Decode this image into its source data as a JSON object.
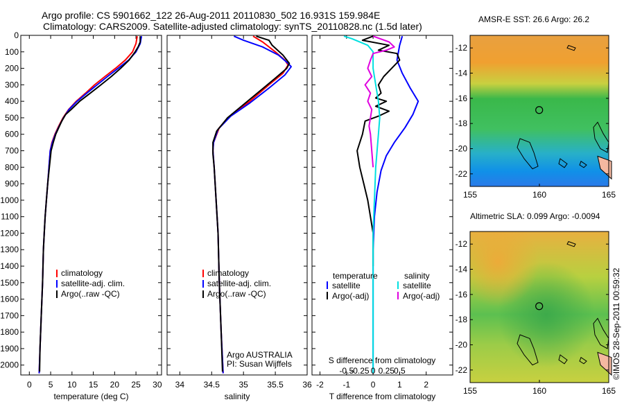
{
  "header": {
    "line1": "Argo profile: CS 5901662_122 26-Aug-2011 20110830_502 16.931S 159.984E",
    "line2": "Climatology: CARS2009. Satellite-adjusted climatology: synTS_20110828.nc (1.5d later)"
  },
  "colors": {
    "climatology": "#ff0000",
    "satellite": "#0000ff",
    "argo": "#000000",
    "sal_satellite": "#00e0e0",
    "sal_argo": "#e000e0"
  },
  "depth_ticks": [
    0,
    100,
    200,
    300,
    400,
    500,
    600,
    700,
    800,
    900,
    1000,
    1100,
    1200,
    1300,
    1400,
    1500,
    1600,
    1700,
    1800,
    1900,
    2000
  ],
  "chart_data": [
    {
      "type": "line",
      "xlabel": "temperature (deg C)",
      "xlim": [
        -2,
        31
      ],
      "ylim": [
        2060,
        0
      ],
      "xticks": [
        0,
        5,
        10,
        15,
        20,
        25,
        30
      ],
      "legend": [
        "climatology",
        "satellite-adj. clim.",
        "Argo(..raw -QC)"
      ],
      "series": [
        {
          "name": "climatology",
          "color": "#ff0000",
          "points": [
            [
              25.3,
              5
            ],
            [
              25.0,
              50
            ],
            [
              24.2,
              100
            ],
            [
              22.5,
              150
            ],
            [
              20.2,
              200
            ],
            [
              17.7,
              250
            ],
            [
              15.3,
              300
            ],
            [
              13.2,
              350
            ],
            [
              11.0,
              400
            ],
            [
              9.2,
              450
            ],
            [
              7.9,
              500
            ],
            [
              6.9,
              550
            ],
            [
              6.0,
              600
            ],
            [
              5.3,
              650
            ],
            [
              4.9,
              700
            ],
            [
              4.6,
              800
            ],
            [
              4.3,
              900
            ],
            [
              4.0,
              1000
            ],
            [
              3.7,
              1100
            ],
            [
              3.5,
              1200
            ],
            [
              3.3,
              1300
            ],
            [
              3.1,
              1500
            ],
            [
              2.8,
              1700
            ],
            [
              2.5,
              1900
            ],
            [
              2.3,
              2050
            ]
          ]
        },
        {
          "name": "satellite-adj. clim.",
          "color": "#0000ff",
          "points": [
            [
              26.3,
              5
            ],
            [
              26.0,
              50
            ],
            [
              25.0,
              100
            ],
            [
              23.3,
              150
            ],
            [
              20.8,
              200
            ],
            [
              18.3,
              250
            ],
            [
              15.9,
              300
            ],
            [
              13.5,
              350
            ],
            [
              11.2,
              400
            ],
            [
              9.3,
              450
            ],
            [
              8.0,
              500
            ],
            [
              7.0,
              550
            ],
            [
              6.1,
              600
            ],
            [
              5.4,
              650
            ],
            [
              4.9,
              700
            ],
            [
              4.6,
              800
            ],
            [
              4.3,
              900
            ],
            [
              4.0,
              1000
            ],
            [
              3.7,
              1100
            ],
            [
              3.5,
              1200
            ],
            [
              3.3,
              1300
            ],
            [
              3.1,
              1500
            ],
            [
              2.8,
              1700
            ],
            [
              2.5,
              1900
            ],
            [
              2.3,
              2050
            ]
          ]
        },
        {
          "name": "Argo(..raw -QC)",
          "color": "#000000",
          "points": [
            [
              26.0,
              5
            ],
            [
              26.0,
              40
            ],
            [
              25.5,
              70
            ],
            [
              24.8,
              100
            ],
            [
              23.4,
              150
            ],
            [
              21.4,
              200
            ],
            [
              19.2,
              250
            ],
            [
              16.8,
              300
            ],
            [
              14.3,
              350
            ],
            [
              11.8,
              400
            ],
            [
              9.8,
              450
            ],
            [
              8.5,
              480
            ],
            [
              7.6,
              520
            ],
            [
              6.9,
              560
            ],
            [
              6.2,
              600
            ],
            [
              5.6,
              650
            ],
            [
              5.1,
              700
            ],
            [
              4.7,
              800
            ],
            [
              4.3,
              900
            ],
            [
              4.0,
              1000
            ],
            [
              3.7,
              1100
            ],
            [
              3.5,
              1200
            ],
            [
              3.3,
              1300
            ],
            [
              3.1,
              1500
            ],
            [
              2.8,
              1700
            ],
            [
              2.5,
              1900
            ],
            [
              2.4,
              2040
            ]
          ]
        }
      ]
    },
    {
      "type": "line",
      "xlabel": "salinity",
      "xlim": [
        33.8,
        36.0
      ],
      "ylim": [
        2060,
        0
      ],
      "xticks": [
        34,
        34.5,
        35,
        35.5,
        36
      ],
      "legend": [
        "climatology",
        "satellite-adj. clim.",
        "Argo(..raw -QC)"
      ],
      "annotation": [
        "Argo AUSTRALIA",
        "PI: Susan Wijffels"
      ],
      "series": [
        {
          "name": "climatology",
          "color": "#ff0000",
          "points": [
            [
              35.15,
              5
            ],
            [
              35.3,
              40
            ],
            [
              35.5,
              100
            ],
            [
              35.65,
              150
            ],
            [
              35.7,
              180
            ],
            [
              35.62,
              230
            ],
            [
              35.4,
              300
            ],
            [
              35.1,
              400
            ],
            [
              34.82,
              480
            ],
            [
              34.62,
              560
            ],
            [
              34.53,
              650
            ],
            [
              34.52,
              700
            ],
            [
              34.54,
              800
            ],
            [
              34.57,
              1000
            ],
            [
              34.6,
              1200
            ],
            [
              34.62,
              1500
            ],
            [
              34.65,
              1800
            ],
            [
              34.68,
              2050
            ]
          ]
        },
        {
          "name": "satellite-adj. clim.",
          "color": "#0000ff",
          "points": [
            [
              34.85,
              5
            ],
            [
              35.0,
              30
            ],
            [
              35.3,
              70
            ],
            [
              35.55,
              120
            ],
            [
              35.7,
              170
            ],
            [
              35.75,
              190
            ],
            [
              35.65,
              240
            ],
            [
              35.4,
              320
            ],
            [
              35.1,
              410
            ],
            [
              34.8,
              490
            ],
            [
              34.6,
              570
            ],
            [
              34.53,
              650
            ],
            [
              34.52,
              700
            ],
            [
              34.54,
              800
            ],
            [
              34.57,
              1000
            ],
            [
              34.6,
              1200
            ],
            [
              34.62,
              1500
            ],
            [
              34.65,
              1800
            ],
            [
              34.68,
              2050
            ]
          ]
        },
        {
          "name": "Argo(..raw -QC)",
          "color": "#000000",
          "points": [
            [
              35.2,
              5
            ],
            [
              35.4,
              30
            ],
            [
              35.45,
              60
            ],
            [
              35.62,
              120
            ],
            [
              35.72,
              170
            ],
            [
              35.68,
              200
            ],
            [
              35.5,
              260
            ],
            [
              35.25,
              340
            ],
            [
              35.0,
              420
            ],
            [
              34.75,
              500
            ],
            [
              34.58,
              580
            ],
            [
              34.52,
              650
            ],
            [
              34.52,
              720
            ],
            [
              34.54,
              800
            ],
            [
              34.57,
              1000
            ],
            [
              34.6,
              1200
            ],
            [
              34.62,
              1500
            ],
            [
              34.65,
              1800
            ],
            [
              34.67,
              2040
            ]
          ]
        }
      ]
    },
    {
      "type": "line",
      "xlabel": "T difference from climatology",
      "xlabel2": "S difference from climatology",
      "xlim": [
        -2.3,
        3.0
      ],
      "ylim": [
        2060,
        0
      ],
      "xticks": [
        -2,
        -1,
        0,
        1,
        2
      ],
      "xticks2": [
        "-0.5",
        "-0.25",
        "0",
        "0.25",
        "0.5"
      ],
      "legend_temperature": [
        "temperature",
        "satellite",
        "Argo(-adj)"
      ],
      "legend_salinity": [
        "salinity",
        "satellite",
        "Argo(-adj)"
      ],
      "series": [
        {
          "name": "satellite",
          "group": "temperature",
          "color": "#0000ff",
          "points": [
            [
              1.1,
              5
            ],
            [
              1.0,
              60
            ],
            [
              0.9,
              150
            ],
            [
              1.1,
              230
            ],
            [
              1.4,
              320
            ],
            [
              1.7,
              400
            ],
            [
              1.5,
              480
            ],
            [
              1.2,
              560
            ],
            [
              0.8,
              650
            ],
            [
              0.5,
              730
            ],
            [
              0.3,
              820
            ],
            [
              0.15,
              950
            ],
            [
              0.05,
              1100
            ],
            [
              0.0,
              1300
            ],
            [
              0.0,
              2050
            ]
          ]
        },
        {
          "name": "Argo(-adj)",
          "group": "temperature",
          "color": "#000000",
          "points": [
            [
              0.0,
              5
            ],
            [
              -0.4,
              30
            ],
            [
              0.6,
              60
            ],
            [
              0.2,
              90
            ],
            [
              0.9,
              110
            ],
            [
              1.0,
              150
            ],
            [
              0.7,
              200
            ],
            [
              0.4,
              250
            ],
            [
              0.2,
              300
            ],
            [
              0.3,
              350
            ],
            [
              0.1,
              380
            ],
            [
              0.5,
              400
            ],
            [
              0.1,
              430
            ],
            [
              0.6,
              460
            ],
            [
              0.2,
              490
            ],
            [
              -0.3,
              520
            ],
            [
              -0.4,
              600
            ],
            [
              -0.6,
              700
            ],
            [
              -0.5,
              800
            ],
            [
              -0.35,
              900
            ],
            [
              -0.2,
              1000
            ],
            [
              -0.1,
              1100
            ],
            [
              0.0,
              1200
            ],
            [
              0.0,
              1400
            ]
          ]
        },
        {
          "name": "satellite",
          "group": "salinity",
          "color": "#00e0e0",
          "points": [
            [
              -1.1,
              5
            ],
            [
              -0.8,
              20
            ],
            [
              -0.2,
              60
            ],
            [
              0.0,
              100
            ],
            [
              0.0,
              200
            ],
            [
              0.1,
              300
            ],
            [
              0.2,
              400
            ],
            [
              0.25,
              500
            ],
            [
              0.2,
              600
            ],
            [
              0.1,
              800
            ],
            [
              0.05,
              1000
            ],
            [
              0.0,
              1200
            ],
            [
              0.0,
              2050
            ]
          ]
        },
        {
          "name": "Argo(-adj)",
          "group": "salinity",
          "color": "#e000e0",
          "points": [
            [
              0.0,
              5
            ],
            [
              0.6,
              40
            ],
            [
              0.8,
              70
            ],
            [
              0.5,
              90
            ],
            [
              0.0,
              110
            ],
            [
              -0.1,
              150
            ],
            [
              -0.2,
              200
            ],
            [
              -0.05,
              250
            ],
            [
              -0.3,
              300
            ],
            [
              -0.1,
              350
            ],
            [
              -0.2,
              400
            ],
            [
              -0.05,
              450
            ],
            [
              -0.1,
              500
            ],
            [
              -0.15,
              550
            ],
            [
              -0.1,
              600
            ],
            [
              -0.05,
              700
            ],
            [
              0.0,
              800
            ]
          ]
        }
      ]
    },
    {
      "type": "heatmap",
      "title": "AMSR-E SST: 26.6 Argo: 26.2",
      "xlim": [
        155,
        165
      ],
      "ylim": [
        -23,
        -11
      ],
      "xticks": [
        155,
        160,
        165
      ],
      "yticks": [
        -12,
        -14,
        -16,
        -18,
        -20,
        -22
      ],
      "float_position": [
        159.984,
        -16.931
      ]
    },
    {
      "type": "heatmap",
      "title": "Altimetric SLA: 0.099 Argo: -0.0094",
      "xlim": [
        155,
        165
      ],
      "ylim": [
        -23,
        -11
      ],
      "xticks": [
        155,
        160,
        165
      ],
      "yticks": [
        -12,
        -14,
        -16,
        -18,
        -20,
        -22
      ],
      "float_position": [
        159.984,
        -16.931
      ]
    }
  ],
  "credit": "©IMOS 28-Sep-2011 00:59:32"
}
